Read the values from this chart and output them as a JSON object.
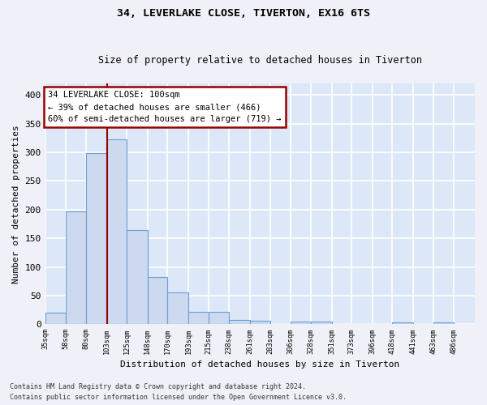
{
  "title1": "34, LEVERLAKE CLOSE, TIVERTON, EX16 6TS",
  "title2": "Size of property relative to detached houses in Tiverton",
  "xlabel": "Distribution of detached houses by size in Tiverton",
  "ylabel": "Number of detached properties",
  "footnote1": "Contains HM Land Registry data © Crown copyright and database right 2024.",
  "footnote2": "Contains public sector information licensed under the Open Government Licence v3.0.",
  "annotation_line1": "34 LEVERLAKE CLOSE: 100sqm",
  "annotation_line2": "← 39% of detached houses are smaller (466)",
  "annotation_line3": "60% of semi-detached houses are larger (719) →",
  "bar_edges": [
    35,
    58,
    80,
    103,
    125,
    148,
    170,
    193,
    215,
    238,
    261,
    283,
    306,
    328,
    351,
    373,
    396,
    418,
    441,
    463,
    486
  ],
  "bar_heights": [
    20,
    197,
    299,
    323,
    165,
    82,
    56,
    21,
    22,
    7,
    6,
    0,
    5,
    5,
    0,
    0,
    0,
    3,
    0,
    3
  ],
  "bar_color": "#ccd9ee",
  "bar_edge_color": "#6a9fd8",
  "property_line_x": 103,
  "property_line_color": "#990000",
  "annotation_box_color": "#990000",
  "ylim": [
    0,
    420
  ],
  "yticks": [
    0,
    50,
    100,
    150,
    200,
    250,
    300,
    350,
    400
  ],
  "bg_color": "#dce8f8",
  "grid_color": "#ffffff",
  "tick_labels": [
    "35sqm",
    "58sqm",
    "80sqm",
    "103sqm",
    "125sqm",
    "148sqm",
    "170sqm",
    "193sqm",
    "215sqm",
    "238sqm",
    "261sqm",
    "283sqm",
    "306sqm",
    "328sqm",
    "351sqm",
    "373sqm",
    "396sqm",
    "418sqm",
    "441sqm",
    "463sqm",
    "486sqm"
  ]
}
